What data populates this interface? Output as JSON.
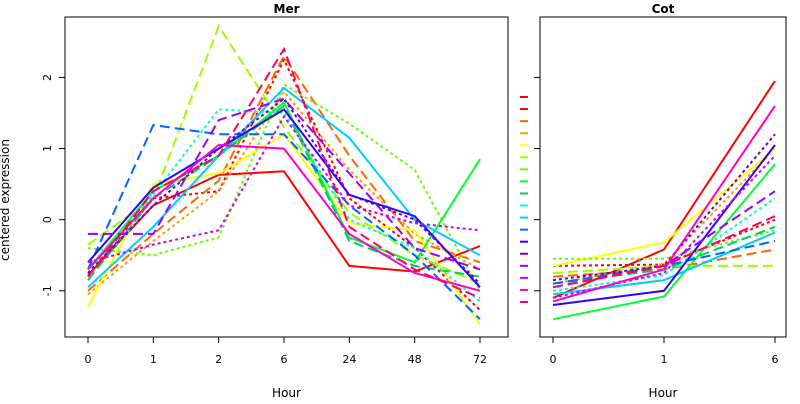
{
  "ylabel": "centered expression",
  "chart_data": [
    {
      "type": "line",
      "title": "Mer",
      "xlabel": "Hour",
      "ylabel": "centered expression",
      "categories": [
        "0",
        "1",
        "2",
        "6",
        "24",
        "48",
        "72"
      ],
      "ylim": [
        -1.65,
        2.85
      ],
      "yticks": [
        -1,
        0,
        1,
        2
      ],
      "grid": false,
      "legend": "none",
      "series": [
        {
          "color": "#FF0000",
          "dash": "solid",
          "values": [
            -0.78,
            0.2,
            0.63,
            0.68,
            -0.65,
            -0.73,
            -0.37
          ]
        },
        {
          "color": "#FF0000",
          "dash": "dotted",
          "values": [
            -0.8,
            0.3,
            0.4,
            2.25,
            0.3,
            -0.4,
            -1.27
          ]
        },
        {
          "color": "#FF6600",
          "dash": "dashed",
          "values": [
            -1.0,
            -0.2,
            0.55,
            2.3,
            0.9,
            -0.3,
            -0.6
          ]
        },
        {
          "color": "#FF9900",
          "dash": "dotted",
          "values": [
            -1.05,
            -0.3,
            0.4,
            1.8,
            0.7,
            -0.2,
            -0.7
          ]
        },
        {
          "color": "#FFFF00",
          "dash": "solid",
          "values": [
            -1.22,
            0.5,
            0.65,
            1.2,
            -0.05,
            -0.15,
            -1.47
          ]
        },
        {
          "color": "#99FF00",
          "dash": "dashed",
          "values": [
            -0.35,
            0.3,
            2.72,
            1.3,
            0.1,
            -0.5,
            -0.9
          ]
        },
        {
          "color": "#66FF00",
          "dash": "dotted",
          "values": [
            -0.4,
            -0.5,
            -0.25,
            1.9,
            1.35,
            0.7,
            -1.0
          ]
        },
        {
          "color": "#00FF33",
          "dash": "solid",
          "values": [
            -0.7,
            0.4,
            0.9,
            1.65,
            -0.25,
            -0.6,
            0.85
          ]
        },
        {
          "color": "#00CC66",
          "dash": "dashed",
          "values": [
            -0.85,
            0.3,
            0.9,
            1.6,
            -0.3,
            -0.65,
            -0.8
          ]
        },
        {
          "color": "#00FFCC",
          "dash": "dotted",
          "values": [
            -0.75,
            0.35,
            1.55,
            1.5,
            0.0,
            -0.4,
            -1.15
          ]
        },
        {
          "color": "#00CCFF",
          "dash": "solid",
          "values": [
            -0.95,
            -0.1,
            0.9,
            1.85,
            1.15,
            0.0,
            -0.5
          ]
        },
        {
          "color": "#0066FF",
          "dash": "dashed",
          "values": [
            -0.7,
            1.33,
            1.2,
            1.2,
            0.2,
            -0.5,
            -1.4
          ]
        },
        {
          "color": "#3300FF",
          "dash": "solid",
          "values": [
            -0.6,
            0.45,
            1.0,
            1.55,
            0.35,
            0.05,
            -0.95
          ]
        },
        {
          "color": "#6600CC",
          "dash": "dotted",
          "values": [
            -0.75,
            0.2,
            1.0,
            1.7,
            0.35,
            0.0,
            -0.9
          ]
        },
        {
          "color": "#9900FF",
          "dash": "dashed",
          "values": [
            -0.2,
            -0.2,
            1.4,
            1.7,
            0.65,
            -0.4,
            -0.7
          ]
        },
        {
          "color": "#CC00FF",
          "dash": "dotted",
          "values": [
            -0.6,
            -0.35,
            -0.15,
            1.45,
            0.2,
            -0.05,
            -0.15
          ]
        },
        {
          "color": "#FF00CC",
          "dash": "solid",
          "values": [
            -0.7,
            0.3,
            1.05,
            1.0,
            -0.2,
            -0.75,
            -1.0
          ]
        },
        {
          "color": "#FF0066",
          "dash": "dashed",
          "values": [
            -0.8,
            0.4,
            0.9,
            2.4,
            -0.1,
            -0.7,
            -1.1
          ]
        }
      ]
    },
    {
      "type": "line",
      "title": "Cot",
      "xlabel": "Hour",
      "categories": [
        "0",
        "1",
        "6"
      ],
      "ylim": [
        -1.65,
        2.85
      ],
      "yticks": [
        -1,
        0,
        1,
        2
      ],
      "grid": false,
      "legend": "none",
      "series": [
        {
          "color": "#FF0000",
          "dash": "solid",
          "values": [
            -1.1,
            -0.42,
            1.95
          ]
        },
        {
          "color": "#FF0000",
          "dash": "dotted",
          "values": [
            -0.65,
            -0.63,
            0.0
          ]
        },
        {
          "color": "#FF6600",
          "dash": "dashed",
          "values": [
            -0.8,
            -0.7,
            -0.42
          ]
        },
        {
          "color": "#FF9900",
          "dash": "dotted",
          "values": [
            -0.9,
            -0.62,
            1.0
          ]
        },
        {
          "color": "#FFFF00",
          "dash": "solid",
          "values": [
            -0.65,
            -0.32,
            1.0
          ]
        },
        {
          "color": "#99FF00",
          "dash": "dashed",
          "values": [
            -0.75,
            -0.65,
            -0.65
          ]
        },
        {
          "color": "#66FF00",
          "dash": "dotted",
          "values": [
            -0.55,
            -0.55,
            -0.15
          ]
        },
        {
          "color": "#00FF33",
          "dash": "solid",
          "values": [
            -1.4,
            -1.08,
            0.78
          ]
        },
        {
          "color": "#00CC66",
          "dash": "dashed",
          "values": [
            -0.9,
            -0.7,
            -0.1
          ]
        },
        {
          "color": "#00FFCC",
          "dash": "dotted",
          "values": [
            -1.0,
            -0.78,
            0.3
          ]
        },
        {
          "color": "#00CCFF",
          "dash": "solid",
          "values": [
            -1.05,
            -0.85,
            -0.18
          ]
        },
        {
          "color": "#0066FF",
          "dash": "dashed",
          "values": [
            -0.9,
            -0.65,
            -0.3
          ]
        },
        {
          "color": "#3300FF",
          "dash": "solid",
          "values": [
            -1.2,
            -1.0,
            1.05
          ]
        },
        {
          "color": "#6600CC",
          "dash": "dotted",
          "values": [
            -0.85,
            -0.65,
            1.2
          ]
        },
        {
          "color": "#9900FF",
          "dash": "dashed",
          "values": [
            -0.95,
            -0.65,
            0.4
          ]
        },
        {
          "color": "#CC00FF",
          "dash": "dotted",
          "values": [
            -1.1,
            -0.75,
            0.9
          ]
        },
        {
          "color": "#FF00CC",
          "dash": "solid",
          "values": [
            -1.15,
            -0.7,
            1.6
          ]
        },
        {
          "color": "#FF0066",
          "dash": "dashed",
          "values": [
            -0.95,
            -0.65,
            0.05
          ]
        }
      ]
    }
  ]
}
